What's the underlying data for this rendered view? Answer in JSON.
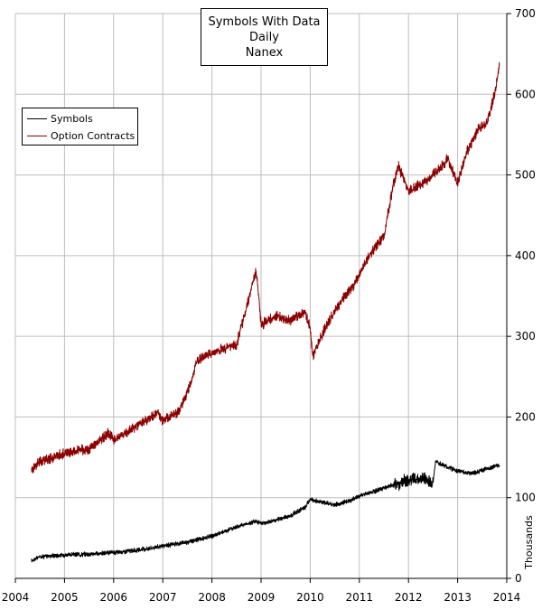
{
  "chart_data": {
    "type": "line",
    "title": [
      "Symbols With Data",
      "Daily",
      "Nanex"
    ],
    "xlabel": "",
    "ylabel": "Thousands",
    "xlim": [
      2004,
      2014
    ],
    "ylim": [
      0,
      700
    ],
    "x_ticks": [
      "2004",
      "2005",
      "2006",
      "2007",
      "2008",
      "2009",
      "2010",
      "2011",
      "2012",
      "2013",
      "2014"
    ],
    "y_ticks": [
      "0",
      "100",
      "200",
      "300",
      "400",
      "500",
      "600",
      "700"
    ],
    "y_axis_side": "right",
    "grid": true,
    "legend": "top-left",
    "series": [
      {
        "name": "Symbols",
        "color": "#000000",
        "x": [
          2004.33,
          2004.5,
          2005.0,
          2005.5,
          2006.0,
          2006.5,
          2007.0,
          2007.5,
          2008.0,
          2008.5,
          2008.9,
          2009.0,
          2009.3,
          2009.6,
          2009.9,
          2010.0,
          2010.2,
          2010.5,
          2010.8,
          2011.0,
          2011.3,
          2011.5,
          2011.8,
          2012.0,
          2012.3,
          2012.5,
          2012.55,
          2012.8,
          2013.0,
          2013.3,
          2013.6,
          2013.85
        ],
        "values": [
          22,
          27,
          29,
          30,
          32,
          35,
          40,
          45,
          52,
          64,
          71,
          68,
          72,
          78,
          88,
          98,
          95,
          91,
          96,
          102,
          108,
          112,
          118,
          122,
          124,
          118,
          145,
          138,
          133,
          130,
          136,
          140
        ]
      },
      {
        "name": "Option Contracts",
        "color": "#8b0000",
        "x": [
          2004.33,
          2004.5,
          2005.0,
          2005.5,
          2005.9,
          2006.0,
          2006.5,
          2006.9,
          2007.0,
          2007.3,
          2007.5,
          2007.7,
          2008.0,
          2008.5,
          2008.85,
          2008.9,
          2009.0,
          2009.3,
          2009.6,
          2009.9,
          2010.0,
          2010.05,
          2010.3,
          2010.6,
          2010.9,
          2011.2,
          2011.5,
          2011.7,
          2011.8,
          2012.0,
          2012.3,
          2012.6,
          2012.8,
          2013.0,
          2013.2,
          2013.4,
          2013.6,
          2013.75,
          2013.85
        ],
        "values": [
          135,
          145,
          155,
          160,
          180,
          172,
          190,
          205,
          195,
          205,
          230,
          270,
          280,
          290,
          370,
          380,
          315,
          325,
          320,
          330,
          310,
          275,
          310,
          340,
          365,
          400,
          425,
          490,
          510,
          480,
          490,
          505,
          520,
          490,
          530,
          555,
          565,
          600,
          635
        ]
      }
    ]
  }
}
